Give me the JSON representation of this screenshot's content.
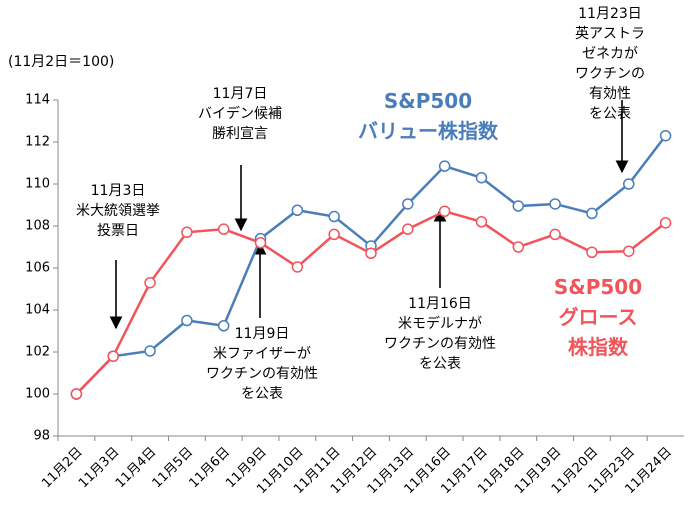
{
  "chart_data": {
    "type": "line",
    "y_label": "(11月2日＝100)",
    "categories": [
      "11月2日",
      "11月3日",
      "11月4日",
      "11月5日",
      "11月6日",
      "11月9日",
      "11月10日",
      "11月11日",
      "11月12日",
      "11月13日",
      "11月16日",
      "11月17日",
      "11月18日",
      "11月19日",
      "11月20日",
      "11月23日",
      "11月24日"
    ],
    "series": [
      {
        "name": "S&P500\nバリュー株指数",
        "color": "#4a7ebb",
        "values": [
          100,
          101.8,
          102.05,
          103.5,
          103.25,
          107.4,
          108.75,
          108.45,
          107.05,
          109.05,
          110.85,
          110.3,
          108.95,
          109.05,
          108.6,
          110.0,
          112.3
        ]
      },
      {
        "name": "S&P500\nグロース株指数",
        "color": "#f2545b",
        "values": [
          100,
          101.8,
          105.3,
          107.7,
          107.85,
          107.2,
          106.05,
          107.6,
          106.7,
          107.85,
          108.7,
          108.2,
          107.0,
          107.6,
          106.75,
          106.8,
          108.15
        ]
      }
    ],
    "ylim": [
      98,
      114
    ],
    "yticks": [
      98,
      100,
      102,
      104,
      106,
      108,
      110,
      112,
      114
    ],
    "annotations": [
      "11月3日\n米大統領選挙\n投票日",
      "11月7日\nバイデン候補\n勝利宣言",
      "11月9日\n米ファイザーが\nワクチンの有効性\nを公表",
      "11月16日\n米モデルナが\nワクチンの有効性\nを公表",
      "11月23日\n英アストラゼネカが\nワクチンの有効性\nを公表"
    ]
  }
}
